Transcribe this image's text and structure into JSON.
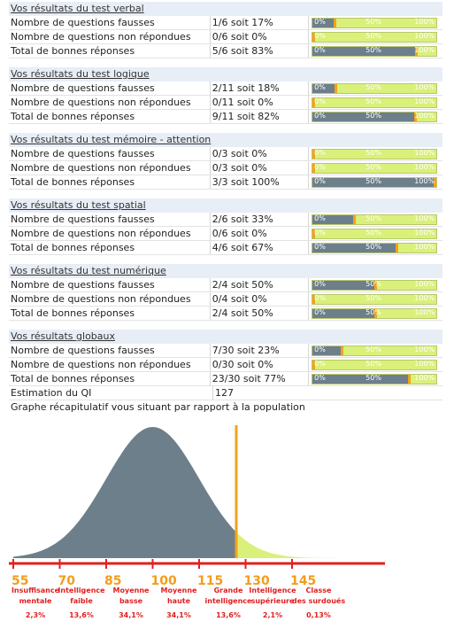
{
  "sections": [
    {
      "title": "Vos résultats du test verbal",
      "rows": [
        {
          "label": "Nombre de questions fausses",
          "value": "1/6 soit 17%",
          "pct": 17
        },
        {
          "label": "Nombre de questions non répondues",
          "value": "0/6 soit 0%",
          "pct": 0
        },
        {
          "label": "Total de bonnes réponses",
          "value": "5/6 soit 83%",
          "pct": 83
        }
      ]
    },
    {
      "title": "Vos résultats du test logique",
      "rows": [
        {
          "label": "Nombre de questions fausses",
          "value": "2/11 soit 18%",
          "pct": 18
        },
        {
          "label": "Nombre de questions non répondues",
          "value": "0/11 soit 0%",
          "pct": 0
        },
        {
          "label": "Total de bonnes réponses",
          "value": "9/11 soit 82%",
          "pct": 82
        }
      ]
    },
    {
      "title": "Vos résultats du test mémoire - attention",
      "rows": [
        {
          "label": "Nombre de questions fausses",
          "value": "0/3 soit 0%",
          "pct": 0
        },
        {
          "label": "Nombre de questions non répondues",
          "value": "0/3 soit 0%",
          "pct": 0
        },
        {
          "label": "Total de bonnes réponses",
          "value": "3/3 soit 100%",
          "pct": 100
        }
      ]
    },
    {
      "title": "Vos résultats du test spatial",
      "rows": [
        {
          "label": "Nombre de questions fausses",
          "value": "2/6 soit 33%",
          "pct": 33
        },
        {
          "label": "Nombre de questions non répondues",
          "value": "0/6 soit 0%",
          "pct": 0
        },
        {
          "label": "Total de bonnes réponses",
          "value": "4/6 soit 67%",
          "pct": 67
        }
      ]
    },
    {
      "title": "Vos résultats du test numérique",
      "rows": [
        {
          "label": "Nombre de questions fausses",
          "value": "2/4 soit 50%",
          "pct": 50
        },
        {
          "label": "Nombre de questions non répondues",
          "value": "0/4 soit 0%",
          "pct": 0
        },
        {
          "label": "Total de bonnes réponses",
          "value": "2/4 soit 50%",
          "pct": 50
        }
      ]
    }
  ],
  "global": {
    "title": "Vos résultats globaux",
    "rows": [
      {
        "label": "Nombre de questions fausses",
        "value": "7/30 soit 23%",
        "pct": 23
      },
      {
        "label": "Nombre de questions non répondues",
        "value": "0/30 soit 0%",
        "pct": 0
      },
      {
        "label": "Total de bonnes réponses",
        "value": "23/30 soit 77%",
        "pct": 77
      }
    ],
    "qi_label": "Estimation du QI",
    "qi_value": "127",
    "graph_title": "Graphe récapitulatif vous situant par rapport à la population"
  },
  "bar_labels": {
    "zero": "0%",
    "half": "50%",
    "full": "100%"
  },
  "chart_data": {
    "type": "area",
    "x_ticks": [
      55,
      70,
      85,
      100,
      115,
      130,
      145
    ],
    "marker": 127,
    "mean": 100,
    "sd": 15,
    "categories": [
      {
        "name": "Insuffisance mentale",
        "pct": "2,3%"
      },
      {
        "name": "Intelligence faible",
        "pct": "13,6%"
      },
      {
        "name": "Moyenne basse",
        "pct": "34,1%"
      },
      {
        "name": "Moyenne haute",
        "pct": "34,1%"
      },
      {
        "name": "Grande intelligence",
        "pct": "13,6%"
      },
      {
        "name": "Intelligence supérieure",
        "pct": "2,1%"
      },
      {
        "name": "Classe des surdoués",
        "pct": "0,13%"
      }
    ]
  },
  "colors": {
    "fill": "#6d7f8b",
    "bar_bg": "#d9f07a",
    "marker": "#f3a21a",
    "axis": "#e02020",
    "label": "#e02020",
    "tick": "#f29d1a"
  }
}
